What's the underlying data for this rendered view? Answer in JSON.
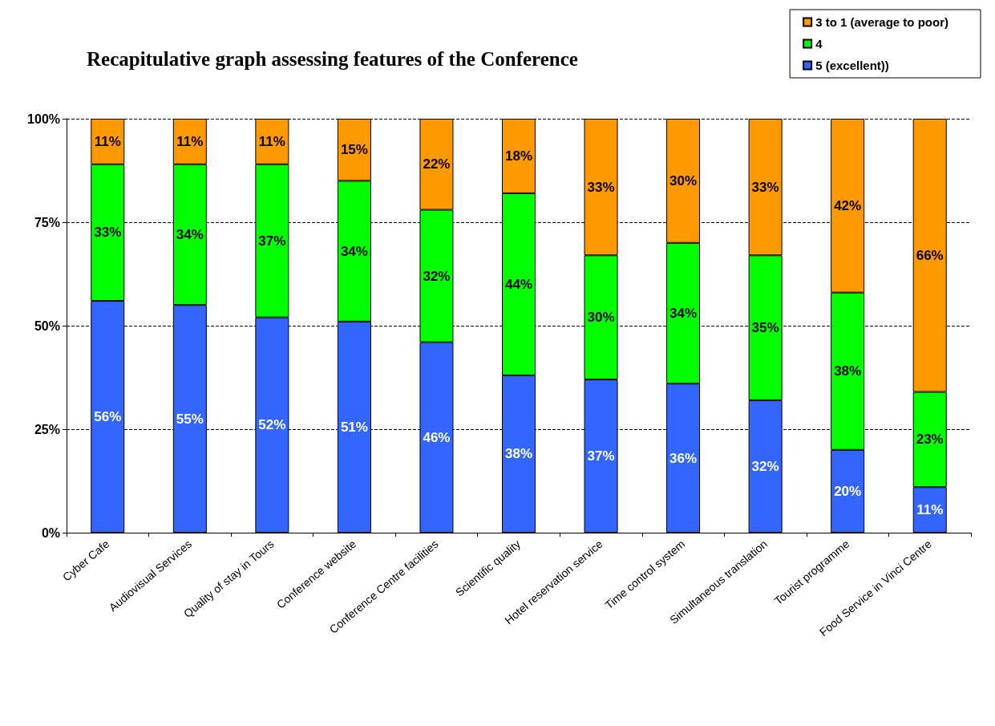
{
  "chart_data": {
    "type": "bar",
    "title": "Recapitulative graph assessing features of the Conference",
    "stacked": true,
    "categories": [
      "Cyber Cafe",
      "Audiovisual Services",
      "Quality of stay in Tours",
      "Conference website",
      "Conference Centre facilities",
      "Scientific quality",
      "Hotel reservation service",
      "Time control system",
      "Simultaneous translation",
      "Tourist programme",
      "Food Service in Vinci Centre"
    ],
    "series": [
      {
        "name": "5 (excellent))",
        "color": "#3366ff",
        "values": [
          56,
          55,
          52,
          51,
          46,
          38,
          37,
          36,
          32,
          20,
          11
        ],
        "value_labels": [
          "56%",
          "55%",
          "52%",
          "51%",
          "46%",
          "38%",
          "37%",
          "36%",
          "32%",
          "20%",
          "11%"
        ]
      },
      {
        "name": "4",
        "color": "#00ff00",
        "values": [
          33,
          34,
          37,
          34,
          32,
          44,
          30,
          34,
          35,
          38,
          23
        ],
        "value_labels": [
          "33%",
          "34%",
          "37%",
          "34%",
          "32%",
          "44%",
          "30%",
          "34%",
          "35%",
          "38%",
          "23%"
        ]
      },
      {
        "name": "3 to 1 (average to poor)",
        "color": "#ff9900",
        "values": [
          11,
          11,
          11,
          15,
          22,
          18,
          33,
          30,
          33,
          42,
          66
        ],
        "value_labels": [
          "11%",
          "11%",
          "11%",
          "15%",
          "22%",
          "18%",
          "33%",
          "30%",
          "33%",
          "42%",
          "66%"
        ]
      }
    ],
    "ylim": [
      0,
      100
    ],
    "yticks": [
      {
        "value": 0,
        "label": "0%"
      },
      {
        "value": 25,
        "label": "25%"
      },
      {
        "value": 50,
        "label": "50%"
      },
      {
        "value": 75,
        "label": "75%"
      },
      {
        "value": 100,
        "label": "100%"
      }
    ],
    "grid": "y",
    "legend": "top right"
  }
}
